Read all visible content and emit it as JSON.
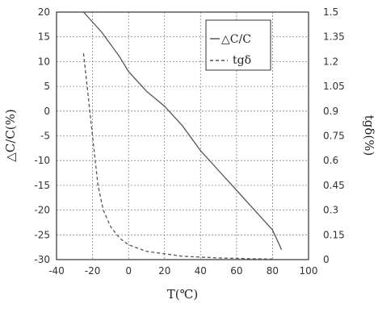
{
  "chart_data": {
    "type": "line",
    "xlabel": "T(℃)",
    "ylabel_left": "△C/C(%)",
    "ylabel_right": "tgδ(%)",
    "xlim": [
      -40,
      100
    ],
    "ylim_left": [
      -30,
      20
    ],
    "ylim_right": [
      0,
      1.5
    ],
    "x_ticks": [
      "-40",
      "-20",
      "0",
      "20",
      "40",
      "60",
      "80",
      "100"
    ],
    "y_left_ticks": [
      "20",
      "15",
      "10",
      "5",
      "0",
      "-5",
      "-10",
      "-15",
      "-20",
      "-25",
      "-30"
    ],
    "y_right_ticks": [
      "1.5",
      "1.35",
      "1.2",
      "1.05",
      "0.9",
      "0.75",
      "0.6",
      "0.45",
      "0.3",
      "0.15",
      "0"
    ],
    "grid": true,
    "legend_position": "top-right",
    "series": [
      {
        "name": "△C/C",
        "axis": "left",
        "style": "solid",
        "color": "#555555",
        "x": [
          -25,
          -15,
          -5,
          0,
          10,
          20,
          30,
          40,
          50,
          60,
          70,
          80,
          85
        ],
        "y": [
          20,
          16,
          11,
          8,
          4,
          1,
          -3,
          -8,
          -12,
          -16,
          -20,
          -24,
          -28
        ]
      },
      {
        "name": "tgδ",
        "axis": "right",
        "style": "dashed",
        "color": "#555555",
        "x": [
          -25,
          -23,
          -21,
          -19,
          -17,
          -14,
          -10,
          -5,
          0,
          10,
          20,
          30,
          40,
          50,
          60,
          70,
          80
        ],
        "y": [
          1.25,
          1.05,
          0.85,
          0.65,
          0.45,
          0.3,
          0.2,
          0.13,
          0.09,
          0.05,
          0.035,
          0.02,
          0.015,
          0.01,
          0.008,
          0.005,
          0.003
        ]
      }
    ]
  }
}
